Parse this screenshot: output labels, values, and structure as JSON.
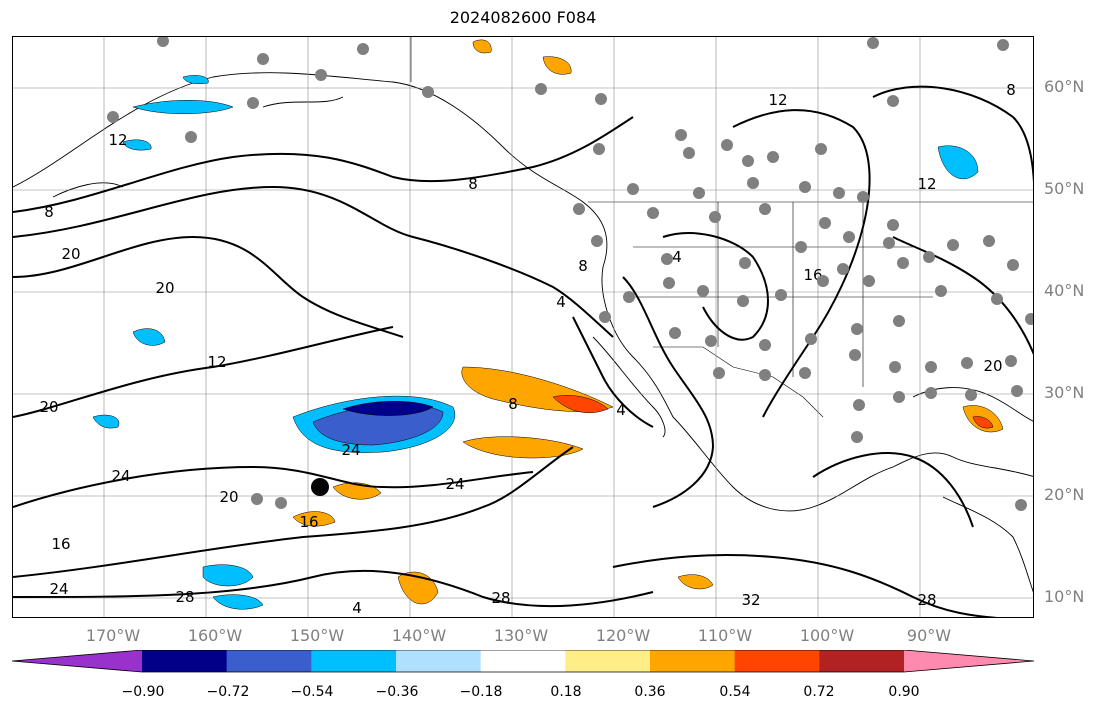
{
  "title": "2024082600 F084",
  "lat_labels": [
    "60°N",
    "50°N",
    "40°N",
    "30°N",
    "20°N",
    "10°N"
  ],
  "lon_labels": [
    "170°W",
    "160°W",
    "150°W",
    "140°W",
    "130°W",
    "120°W",
    "110°W",
    "100°W",
    "90°W"
  ],
  "contour_labels": {
    "c12a": "12",
    "c8a": "8",
    "c8b": "8",
    "c12b": "12",
    "c8c": "8",
    "c20a": "20",
    "c20b": "20",
    "c12c": "12",
    "c20c": "20",
    "c24a": "24",
    "c24b": "24",
    "c16a": "16",
    "c24c": "24",
    "c28a": "28",
    "c4a": "4",
    "c8d": "8",
    "c4b": "4",
    "c4c": "4",
    "c16b": "16",
    "c16c": "16",
    "c20d": "20",
    "c28b": "28",
    "c32": "32",
    "c28c": "28",
    "c4d": "4",
    "c20e": "20",
    "c24d": "24",
    "c12d": "12",
    "c8e": "8"
  },
  "colorbar": {
    "ticks": [
      "−0.90",
      "−0.72",
      "−0.54",
      "−0.36",
      "−0.18",
      "0.18",
      "0.36",
      "0.54",
      "0.72",
      "0.90"
    ],
    "colors": [
      "#9932cc",
      "#00008b",
      "#3a5fcd",
      "#00bfff",
      "#b0e0ff",
      "#ffffff",
      "#ffee88",
      "#ffa500",
      "#ff4500",
      "#b22222",
      "#ff8ab0"
    ]
  }
}
